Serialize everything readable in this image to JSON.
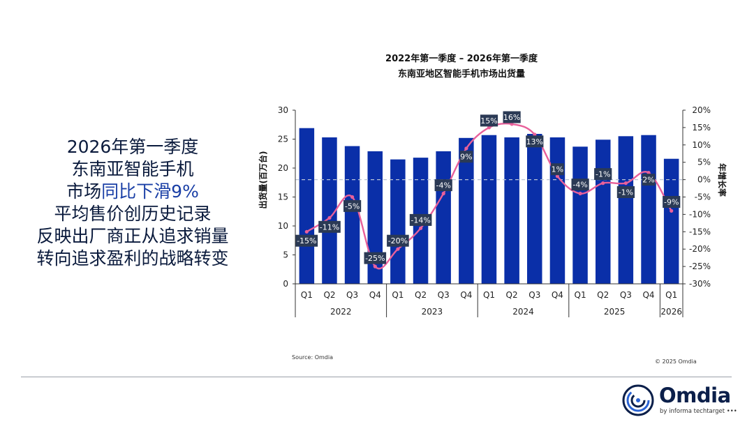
{
  "headline": {
    "line1": "2026年第一季度",
    "line2": "东南亚智能手机",
    "line3_prefix": "市场",
    "line3_highlight": "同比下滑9%",
    "line4": "平均售价创历史记录",
    "line5": "反映出厂商正从追求销量",
    "line6": "转向追求盈利的战略转变"
  },
  "chart_data": {
    "type": "bar",
    "title": "2022年第一季度 – 2026年第一季度",
    "subtitle": "东南亚地区智能手机市场出货量",
    "ylabel": "出货量(百万台)",
    "y2label": "年增长率",
    "ylim": [
      0,
      30
    ],
    "yticks": [
      "0",
      "5",
      "10",
      "15",
      "20",
      "25",
      "30"
    ],
    "y2lim": [
      -30,
      20
    ],
    "y2ticks": [
      "20%",
      "15%",
      "10%",
      "5%",
      "0%",
      "-5%",
      "-10%",
      "-15%",
      "-20%",
      "-25%",
      "-30%"
    ],
    "categories": [
      "Q1",
      "Q2",
      "Q3",
      "Q4",
      "Q1",
      "Q2",
      "Q3",
      "Q4",
      "Q1",
      "Q2",
      "Q3",
      "Q4",
      "Q1",
      "Q2",
      "Q3",
      "Q4",
      "Q1"
    ],
    "years": [
      {
        "label": "2022",
        "count": 4
      },
      {
        "label": "2023",
        "count": 4
      },
      {
        "label": "2024",
        "count": 4
      },
      {
        "label": "2025",
        "count": 4
      },
      {
        "label": "2026",
        "count": 1
      }
    ],
    "series": [
      {
        "type": "bar",
        "values": [
          26.9,
          25.3,
          23.8,
          22.9,
          21.5,
          21.8,
          22.9,
          25.2,
          25.7,
          25.3,
          25.9,
          25.3,
          23.7,
          24.9,
          25.5,
          25.7,
          21.6
        ]
      },
      {
        "type": "line",
        "values": [
          -15,
          -11,
          -5,
          -25,
          -20,
          -14,
          -4,
          9,
          15,
          16,
          13,
          1,
          -4,
          -1,
          -1,
          2,
          -9
        ]
      }
    ],
    "data_labels": [
      "-15%",
      "-11%",
      "-5%",
      "-25%",
      "-20%",
      "-14%",
      "-4%",
      "9%",
      "15%",
      "16%",
      "13%",
      "1%",
      "-4%",
      "-1%",
      "-1%",
      "2%",
      "-9%"
    ],
    "grid": false,
    "zero_reference_line": "dashed"
  },
  "footer": {
    "source": "Source: Omdia",
    "copyright": "© 2025 Omdia",
    "brand": "Omdia",
    "tagline": "by informa techtarget •••"
  },
  "colors": {
    "bar": "#0a2fa8",
    "line": "#e8609a",
    "label_bg": "#2b3a55",
    "headline_text": "#0a1a3c",
    "highlight_text": "#1a3fa6"
  }
}
